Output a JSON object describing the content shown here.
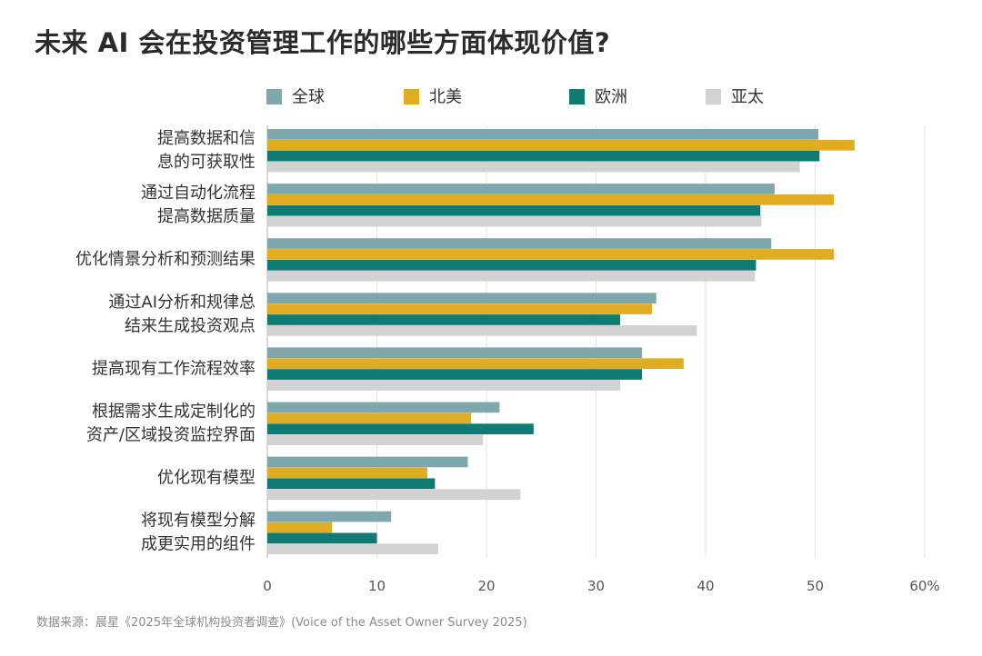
{
  "chart_data": {
    "type": "bar",
    "orientation": "horizontal",
    "title": "未来 AI 会在投资管理工作的哪些方面体现价值?",
    "categories": [
      [
        "提高数据和信",
        "息的可获取性"
      ],
      [
        "通过自动化流程",
        "提高数据质量"
      ],
      [
        "优化情景分析和预测结果"
      ],
      [
        "通过AI分析和规律总",
        "结来生成投资观点"
      ],
      [
        "提高现有工作流程效率"
      ],
      [
        "根据需求生成定制化的",
        "资产/区域投资监控界面"
      ],
      [
        "优化现有模型"
      ],
      [
        "将现有模型分解",
        "成更实用的组件"
      ]
    ],
    "series": [
      {
        "name": "全球",
        "color": "#7fa7ae",
        "values": [
          50.3,
          46.3,
          46.0,
          35.5,
          34.2,
          21.2,
          18.3,
          11.3
        ]
      },
      {
        "name": "北美",
        "color": "#e0ad22",
        "values": [
          53.6,
          51.7,
          51.7,
          35.1,
          38.0,
          18.6,
          14.6,
          5.9
        ]
      },
      {
        "name": "欧洲",
        "color": "#0f7b73",
        "values": [
          50.4,
          45.0,
          44.6,
          32.2,
          34.2,
          24.3,
          15.3,
          10.0
        ]
      },
      {
        "name": "亚太",
        "color": "#d2d2d2",
        "values": [
          48.6,
          45.1,
          44.5,
          39.2,
          32.2,
          19.7,
          23.1,
          15.6
        ]
      }
    ],
    "xlim": [
      0,
      60
    ],
    "xticks": [
      "0",
      "10",
      "20",
      "30",
      "40",
      "50",
      "60%"
    ],
    "grid": true,
    "legend_position": "top"
  },
  "footer": {
    "source": "数据来源：晨星《2025年全球机构投资者调查》(Voice of the Asset Owner Survey 2025)"
  }
}
